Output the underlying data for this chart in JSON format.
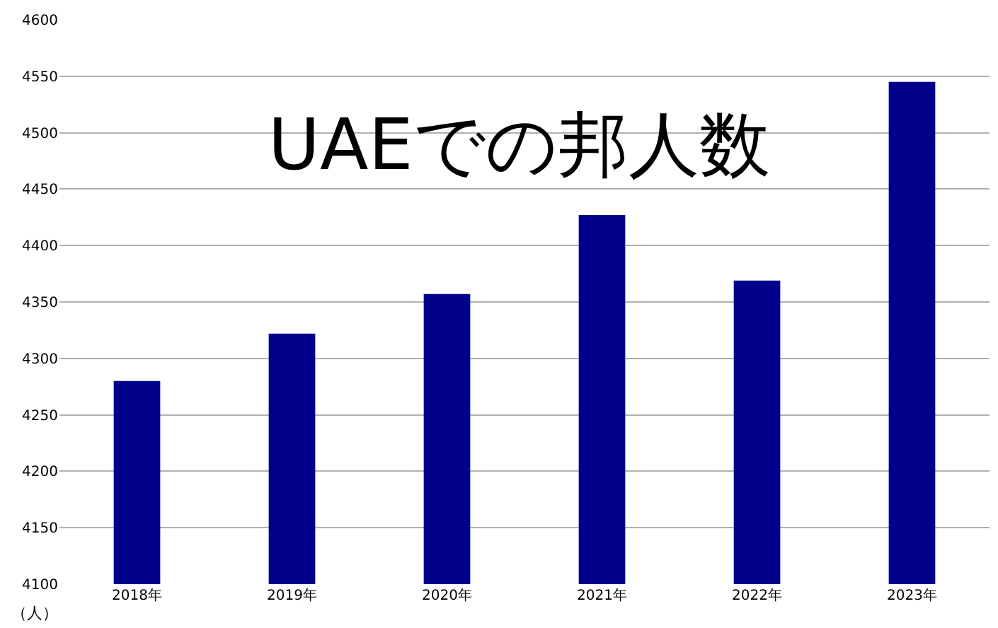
{
  "chart_data": {
    "type": "bar",
    "title": "UAEでの邦人数",
    "categories": [
      "2018年",
      "2019年",
      "2020年",
      "2021年",
      "2022年",
      "2023年"
    ],
    "values": [
      4280,
      4322,
      4357,
      4427,
      4369,
      4545
    ],
    "color": "#00008b",
    "ylim": [
      4100,
      4600
    ],
    "yticks": [
      4100,
      4150,
      4200,
      4250,
      4300,
      4350,
      4400,
      4450,
      4500,
      4550,
      4600
    ],
    "grid": "y",
    "annotations": [
      "（人）"
    ]
  }
}
